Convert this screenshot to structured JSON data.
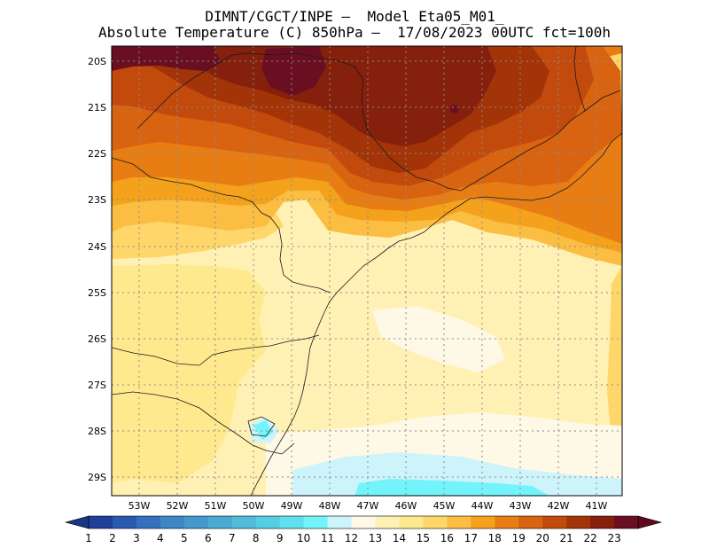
{
  "header": {
    "title_line1": "DIMNT/CGCT/INPE –  Model Eta05_M01_",
    "title_line2": "Absolute Temperature (C) 850hPa –  17/08/2023 00UTC fct=100h"
  },
  "map": {
    "lat_labels": [
      "20S",
      "21S",
      "22S",
      "23S",
      "24S",
      "25S",
      "26S",
      "27S",
      "28S",
      "29S"
    ],
    "lon_labels": [
      "53W",
      "52W",
      "51W",
      "50W",
      "49W",
      "48W",
      "47W",
      "46W",
      "45W",
      "44W",
      "43W",
      "42W",
      "41W"
    ]
  },
  "colorbar": {
    "labels": [
      "1",
      "2",
      "3",
      "4",
      "5",
      "6",
      "7",
      "8",
      "9",
      "10",
      "11",
      "12",
      "13",
      "14",
      "15",
      "16",
      "17",
      "18",
      "19",
      "20",
      "21",
      "22",
      "23"
    ],
    "colors": [
      "#1f3f99",
      "#2a59b0",
      "#3470bd",
      "#3c87c4",
      "#4399cb",
      "#4aaad3",
      "#52bcdb",
      "#55cde3",
      "#5fe0ee",
      "#73f4fb",
      "#cdf3fb",
      "#fef8e6",
      "#fff1b3",
      "#fee98e",
      "#fed66a",
      "#fbbd42",
      "#f4a21c",
      "#e87e13",
      "#d86310",
      "#c24a0d",
      "#a33408",
      "#85200c",
      "#6a0f21"
    ],
    "under_color": "#1c3782",
    "over_color": "#5e0a1c"
  }
}
